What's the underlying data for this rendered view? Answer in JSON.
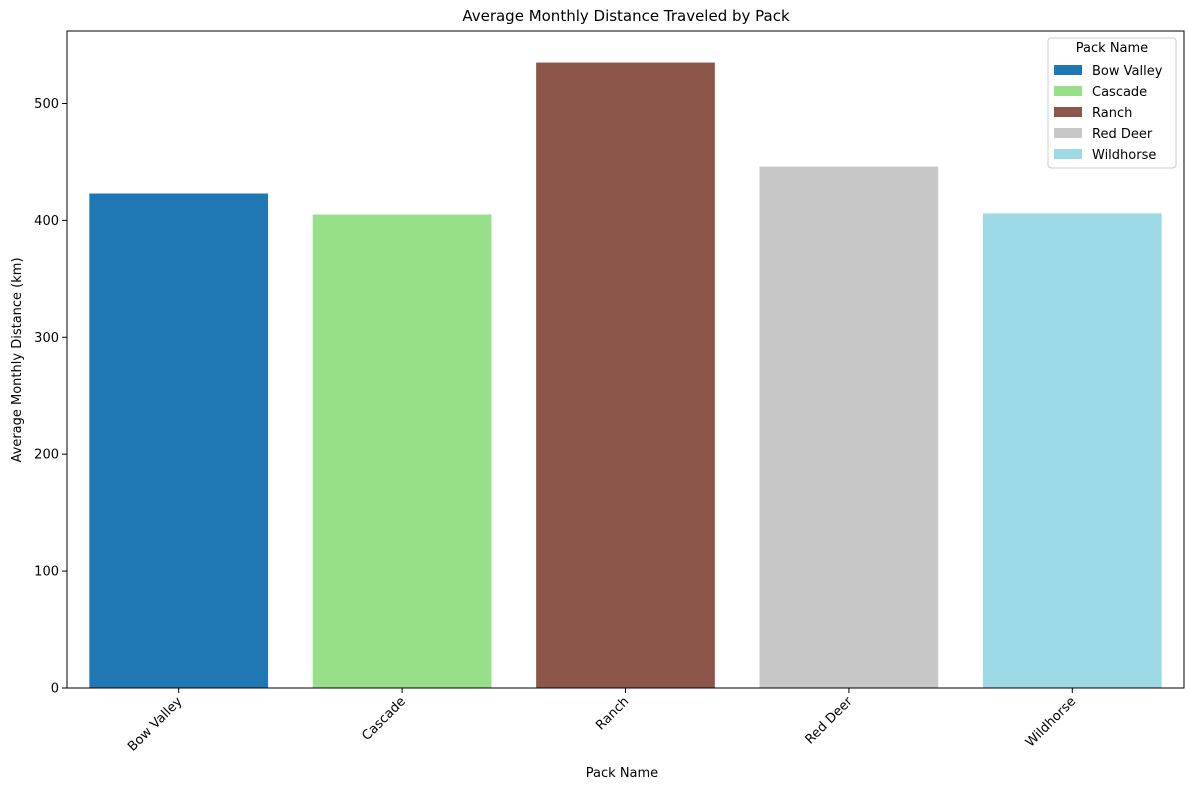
{
  "chart_data": {
    "type": "bar",
    "title": "Average Monthly Distance Traveled by Pack",
    "xlabel": "Pack Name",
    "ylabel": "Average Monthly Distance (km)",
    "categories": [
      "Bow Valley",
      "Cascade",
      "Ranch",
      "Red Deer",
      "Wildhorse"
    ],
    "values": [
      423,
      405,
      535,
      446,
      406
    ],
    "colors": [
      "#1f77b4",
      "#98df8a",
      "#8c564b",
      "#c7c7c7",
      "#9edae5"
    ],
    "ylim": [
      0,
      562
    ],
    "yticks": [
      0,
      100,
      200,
      300,
      400,
      500
    ],
    "grid": false,
    "legend": {
      "title": "Pack Name",
      "placement": "top-right",
      "entries": [
        "Bow Valley",
        "Cascade",
        "Ranch",
        "Red Deer",
        "Wildhorse"
      ]
    }
  }
}
